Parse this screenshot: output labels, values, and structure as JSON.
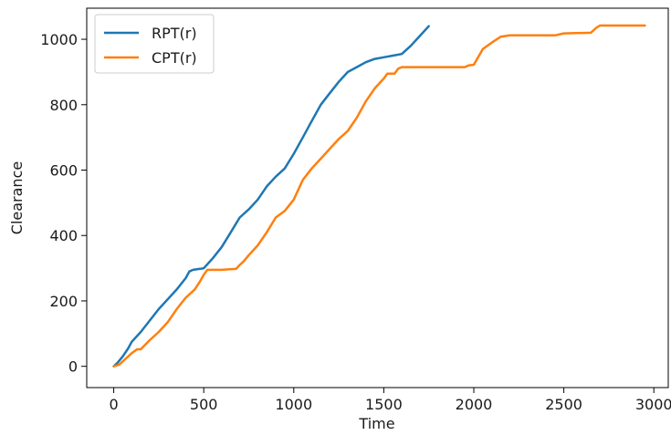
{
  "chart_data": {
    "type": "line",
    "title": "",
    "xlabel": "Time",
    "ylabel": "Clearance",
    "xlim": [
      -150,
      3080
    ],
    "ylim": [
      -65,
      1095
    ],
    "xticks": [
      0,
      500,
      1000,
      1500,
      2000,
      2500,
      3000
    ],
    "yticks": [
      0,
      200,
      400,
      600,
      800,
      1000
    ],
    "grid": false,
    "legend_position": "top-left",
    "series": [
      {
        "name": "RPT(r)",
        "color": "#1f77b4",
        "points": [
          [
            0,
            0
          ],
          [
            20,
            10
          ],
          [
            50,
            30
          ],
          [
            80,
            55
          ],
          [
            100,
            75
          ],
          [
            150,
            105
          ],
          [
            200,
            140
          ],
          [
            250,
            175
          ],
          [
            300,
            205
          ],
          [
            350,
            235
          ],
          [
            400,
            270
          ],
          [
            420,
            290
          ],
          [
            440,
            295
          ],
          [
            480,
            298
          ],
          [
            500,
            300
          ],
          [
            550,
            330
          ],
          [
            600,
            365
          ],
          [
            650,
            410
          ],
          [
            700,
            455
          ],
          [
            750,
            480
          ],
          [
            800,
            510
          ],
          [
            850,
            550
          ],
          [
            900,
            580
          ],
          [
            950,
            605
          ],
          [
            1000,
            650
          ],
          [
            1050,
            700
          ],
          [
            1100,
            750
          ],
          [
            1150,
            800
          ],
          [
            1200,
            835
          ],
          [
            1250,
            870
          ],
          [
            1300,
            900
          ],
          [
            1350,
            915
          ],
          [
            1400,
            930
          ],
          [
            1450,
            940
          ],
          [
            1500,
            945
          ],
          [
            1550,
            950
          ],
          [
            1600,
            955
          ],
          [
            1650,
            980
          ],
          [
            1700,
            1010
          ],
          [
            1750,
            1040
          ]
        ]
      },
      {
        "name": "CPT(r)",
        "color": "#ff7f0e",
        "points": [
          [
            0,
            0
          ],
          [
            30,
            5
          ],
          [
            60,
            20
          ],
          [
            100,
            40
          ],
          [
            130,
            52
          ],
          [
            150,
            52
          ],
          [
            200,
            80
          ],
          [
            250,
            105
          ],
          [
            300,
            135
          ],
          [
            350,
            175
          ],
          [
            400,
            210
          ],
          [
            450,
            235
          ],
          [
            480,
            260
          ],
          [
            500,
            280
          ],
          [
            520,
            295
          ],
          [
            600,
            295
          ],
          [
            680,
            298
          ],
          [
            700,
            310
          ],
          [
            720,
            320
          ],
          [
            750,
            340
          ],
          [
            800,
            370
          ],
          [
            850,
            410
          ],
          [
            900,
            455
          ],
          [
            950,
            475
          ],
          [
            1000,
            510
          ],
          [
            1050,
            570
          ],
          [
            1100,
            605
          ],
          [
            1150,
            635
          ],
          [
            1200,
            665
          ],
          [
            1250,
            695
          ],
          [
            1300,
            720
          ],
          [
            1350,
            760
          ],
          [
            1400,
            810
          ],
          [
            1450,
            850
          ],
          [
            1500,
            880
          ],
          [
            1520,
            895
          ],
          [
            1560,
            895
          ],
          [
            1580,
            910
          ],
          [
            1600,
            915
          ],
          [
            1950,
            915
          ],
          [
            1970,
            920
          ],
          [
            2000,
            922
          ],
          [
            2050,
            970
          ],
          [
            2100,
            990
          ],
          [
            2150,
            1008
          ],
          [
            2200,
            1012
          ],
          [
            2450,
            1012
          ],
          [
            2500,
            1018
          ],
          [
            2650,
            1020
          ],
          [
            2680,
            1035
          ],
          [
            2700,
            1042
          ],
          [
            2950,
            1042
          ]
        ]
      }
    ]
  }
}
